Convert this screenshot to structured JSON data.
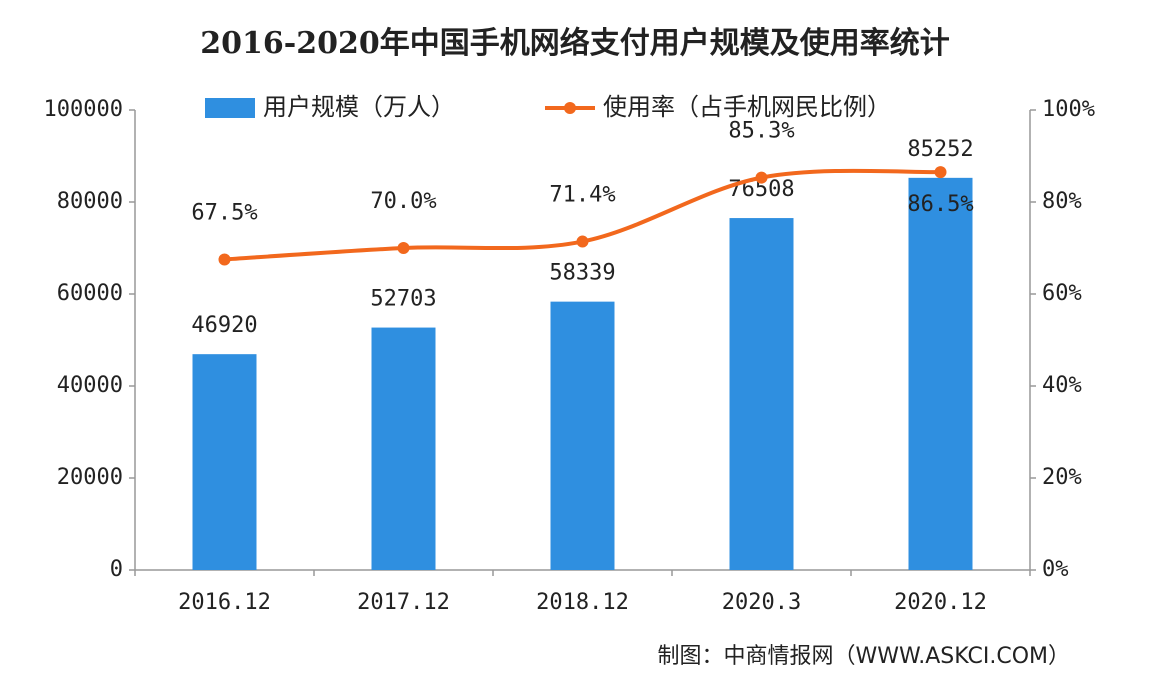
{
  "chart_data": {
    "type": "bar-line",
    "title": "2016-2020年中国手机网络支付用户规模及使用率统计",
    "categories": [
      "2016.12",
      "2017.12",
      "2018.12",
      "2020.3",
      "2020.12"
    ],
    "series": [
      {
        "name": "用户规模（万人）",
        "type": "bar",
        "color": "#2f8fe0",
        "values": [
          46920,
          52703,
          58339,
          76508,
          85252
        ]
      },
      {
        "name": "使用率（占手机网民比例）",
        "type": "line",
        "axis": "y2",
        "color": "#f2681d",
        "values": [
          67.5,
          70.0,
          71.4,
          85.3,
          86.5
        ],
        "value_labels": [
          "67.5%",
          "70.0%",
          "71.4%",
          "85.3%",
          "86.5%"
        ]
      }
    ],
    "ylim": [
      0,
      100000
    ],
    "yticks": [
      0,
      20000,
      40000,
      60000,
      80000,
      100000
    ],
    "y2lim": [
      0,
      100
    ],
    "y2ticks": [
      {
        "value": 0,
        "label": "0%"
      },
      {
        "value": 20,
        "label": "20%"
      },
      {
        "value": 40,
        "label": "40%"
      },
      {
        "value": 60,
        "label": "60%"
      },
      {
        "value": 80,
        "label": "80%"
      },
      {
        "value": 100,
        "label": "100%"
      }
    ],
    "grid": false,
    "legend": "top",
    "source": "制图：中商情报网（WWW.ASKCI.COM）"
  }
}
